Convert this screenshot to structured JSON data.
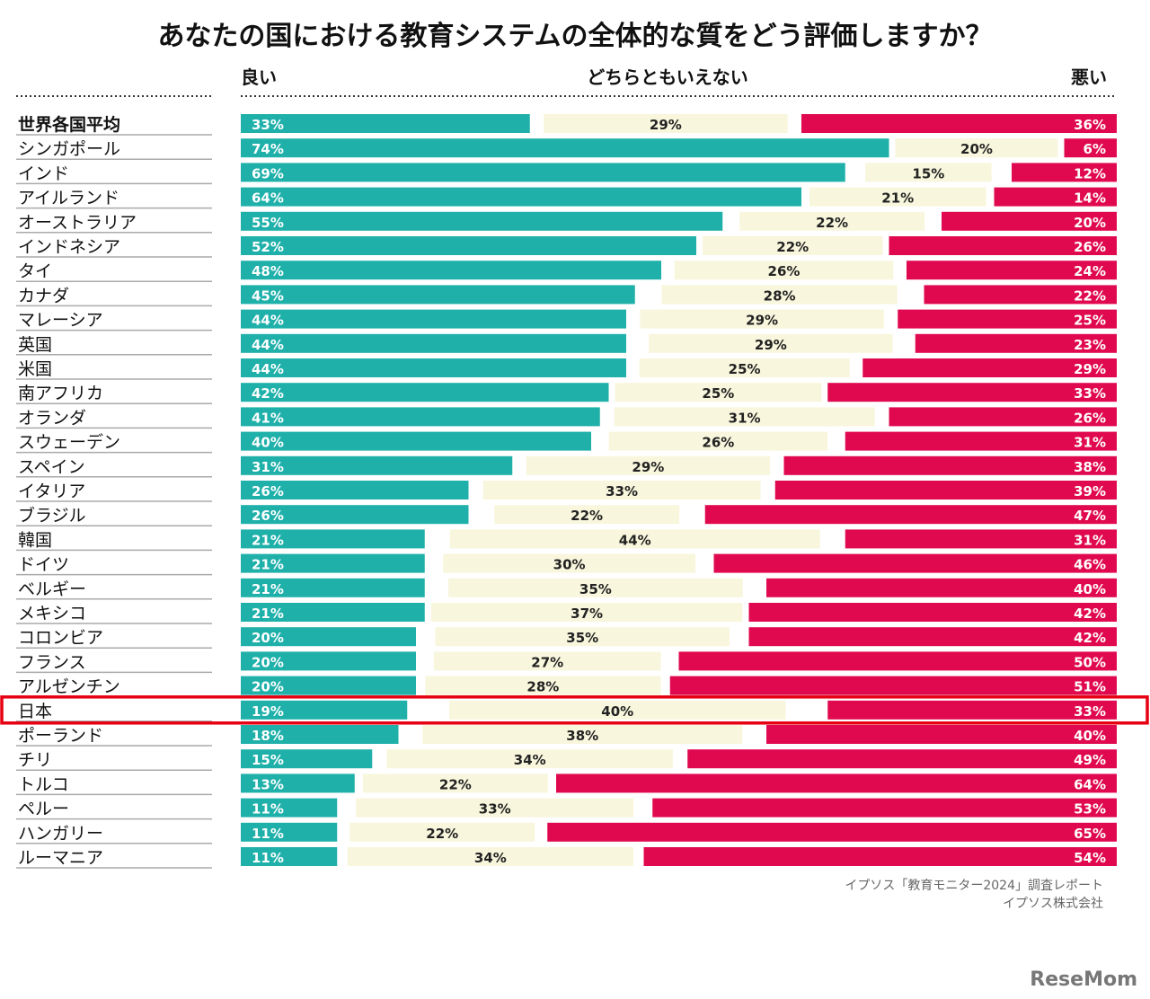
{
  "chart_data": {
    "type": "bar",
    "stacked": "diverging-horizontal",
    "title": "あなたの国における教育システムの全体的な質をどう評価しますか？",
    "column_headers": {
      "good": "良い",
      "neutral": "どちらともいえない",
      "bad": "悪い"
    },
    "colors": {
      "good": "#1fb0aa",
      "neutral": "#f8f6dc",
      "bad": "#e0094f",
      "highlight": "#e60012"
    },
    "highlighted_category": "日本",
    "categories": [
      "世界各国平均",
      "シンガポール",
      "インド",
      "アイルランド",
      "オーストラリア",
      "インドネシア",
      "タイ",
      "カナダ",
      "マレーシア",
      "英国",
      "米国",
      "南アフリカ",
      "オランダ",
      "スウェーデン",
      "スペイン",
      "イタリア",
      "ブラジル",
      "韓国",
      "ドイツ",
      "ベルギー",
      "メキシコ",
      "コロンビア",
      "フランス",
      "アルゼンチン",
      "日本",
      "ポーランド",
      "チリ",
      "トルコ",
      "ペルー",
      "ハンガリー",
      "ルーマニア"
    ],
    "series": [
      {
        "name": "良い",
        "values": [
          33,
          74,
          69,
          64,
          55,
          52,
          48,
          45,
          44,
          44,
          44,
          42,
          41,
          40,
          31,
          26,
          26,
          21,
          21,
          21,
          21,
          20,
          20,
          20,
          19,
          18,
          15,
          13,
          11,
          11,
          11
        ]
      },
      {
        "name": "どちらともいえない",
        "values": [
          29,
          20,
          15,
          21,
          22,
          22,
          26,
          28,
          29,
          29,
          25,
          25,
          31,
          26,
          29,
          33,
          22,
          44,
          30,
          35,
          37,
          35,
          27,
          28,
          40,
          38,
          34,
          22,
          33,
          22,
          34
        ]
      },
      {
        "name": "悪い",
        "values": [
          36,
          6,
          12,
          14,
          20,
          26,
          24,
          22,
          25,
          23,
          29,
          33,
          26,
          31,
          38,
          39,
          47,
          31,
          46,
          40,
          42,
          42,
          50,
          51,
          33,
          40,
          49,
          64,
          53,
          65,
          54
        ]
      }
    ],
    "value_suffix": "%"
  },
  "source": {
    "line1": "イプソス「教育モニター2024」調査レポート",
    "line2": "イプソス株式会社"
  },
  "watermark": "ReseMom"
}
